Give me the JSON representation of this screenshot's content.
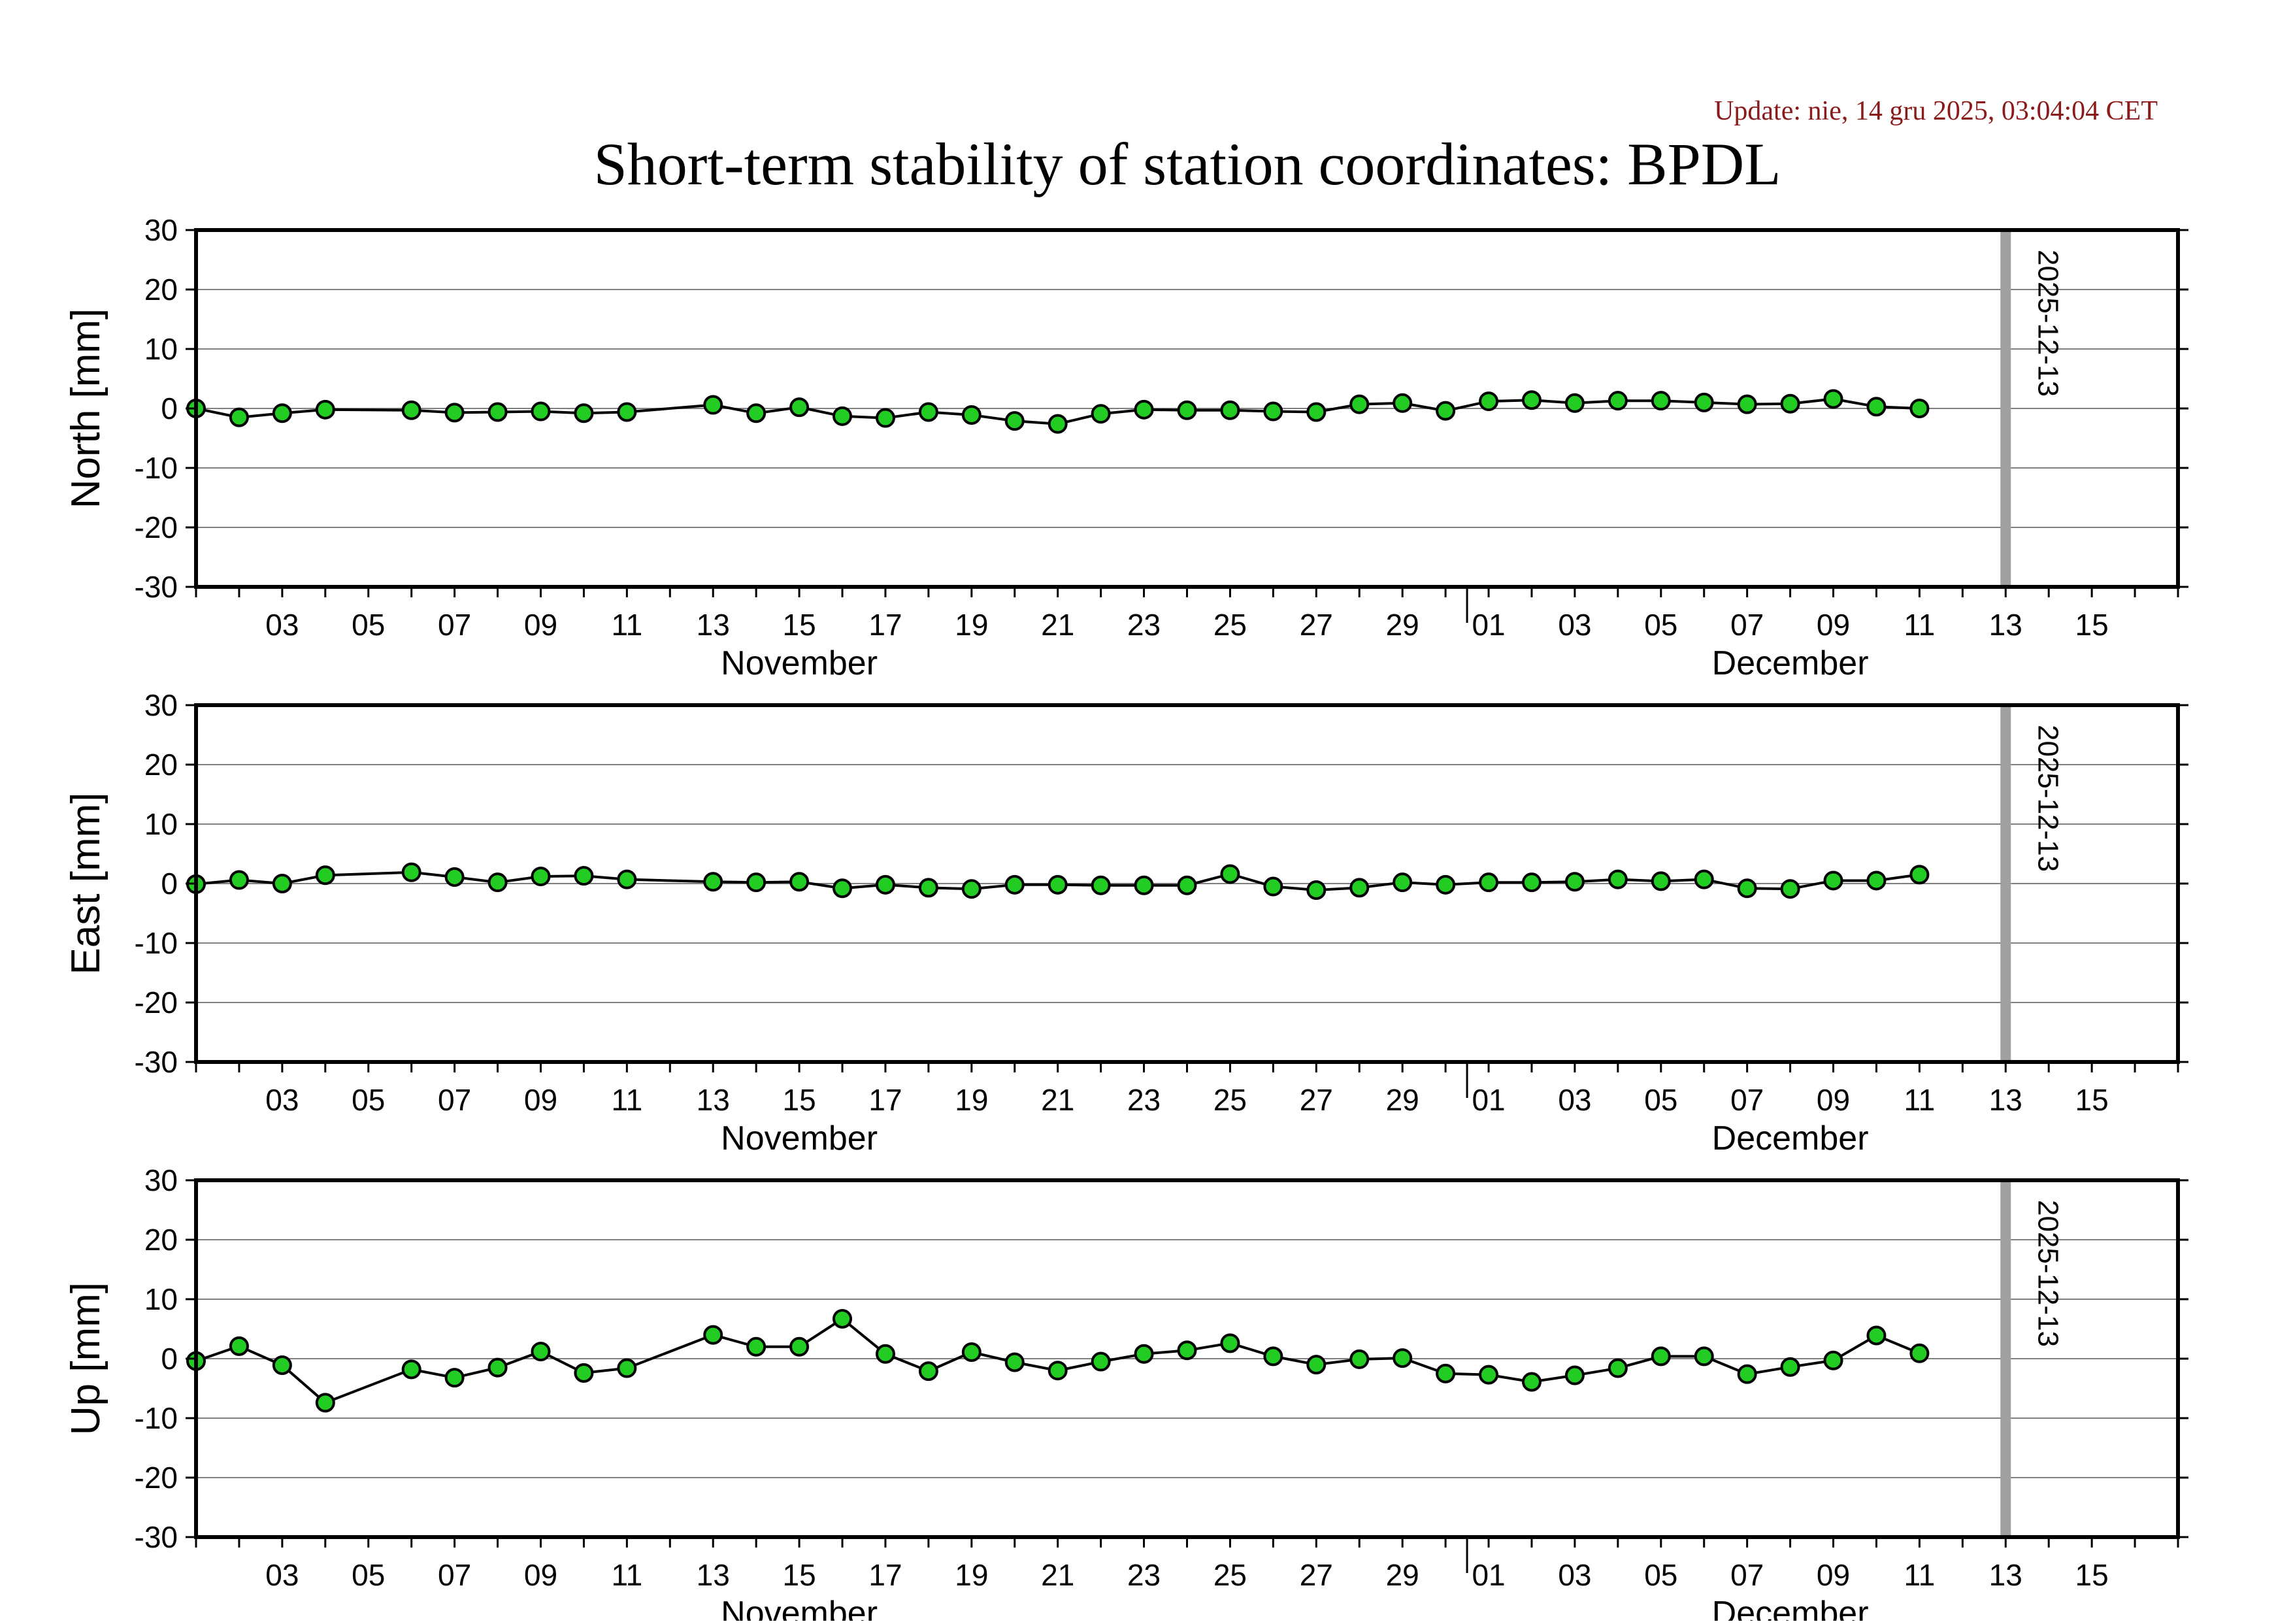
{
  "update_text": "Update: nie, 14 gru 2025, 03:04:04 CET",
  "colors": {
    "update": "#8b1a1a",
    "marker_fill": "#22cc22",
    "marker_stroke": "#000000",
    "line": "#000000",
    "grid": "#808080",
    "marker_band": "#a0a0a0"
  },
  "chart_data": {
    "type": "line",
    "title": "Short-term stability of station coordinates: BPDL",
    "date_marker": "2025-12-13",
    "x_range": [
      "2025-11-01",
      "2025-12-17"
    ],
    "y_range": [
      -30,
      30
    ],
    "y_ticks": [
      30,
      20,
      10,
      0,
      -10,
      -20,
      -30
    ],
    "grid": true,
    "x_ticks": [
      {
        "date": "2025-11-03",
        "label": "03"
      },
      {
        "date": "2025-11-05",
        "label": "05"
      },
      {
        "date": "2025-11-07",
        "label": "07"
      },
      {
        "date": "2025-11-09",
        "label": "09"
      },
      {
        "date": "2025-11-11",
        "label": "11"
      },
      {
        "date": "2025-11-13",
        "label": "13"
      },
      {
        "date": "2025-11-15",
        "label": "15"
      },
      {
        "date": "2025-11-17",
        "label": "17"
      },
      {
        "date": "2025-11-19",
        "label": "19"
      },
      {
        "date": "2025-11-21",
        "label": "21"
      },
      {
        "date": "2025-11-23",
        "label": "23"
      },
      {
        "date": "2025-11-25",
        "label": "25"
      },
      {
        "date": "2025-11-27",
        "label": "27"
      },
      {
        "date": "2025-11-29",
        "label": "29"
      },
      {
        "date": "2025-12-01",
        "label": "01"
      },
      {
        "date": "2025-12-03",
        "label": "03"
      },
      {
        "date": "2025-12-05",
        "label": "05"
      },
      {
        "date": "2025-12-07",
        "label": "07"
      },
      {
        "date": "2025-12-09",
        "label": "09"
      },
      {
        "date": "2025-12-11",
        "label": "11"
      },
      {
        "date": "2025-12-13",
        "label": "13"
      },
      {
        "date": "2025-12-15",
        "label": "15"
      }
    ],
    "months": [
      {
        "label": "November",
        "date": "2025-11-15"
      },
      {
        "label": "December",
        "date": "2025-12-08"
      }
    ],
    "x": [
      "2025-11-01",
      "2025-11-02",
      "2025-11-03",
      "2025-11-04",
      "2025-11-06",
      "2025-11-07",
      "2025-11-08",
      "2025-11-09",
      "2025-11-10",
      "2025-11-11",
      "2025-11-13",
      "2025-11-14",
      "2025-11-15",
      "2025-11-16",
      "2025-11-17",
      "2025-11-18",
      "2025-11-19",
      "2025-11-20",
      "2025-11-21",
      "2025-11-22",
      "2025-11-23",
      "2025-11-24",
      "2025-11-25",
      "2025-11-26",
      "2025-11-27",
      "2025-11-28",
      "2025-11-29",
      "2025-11-30",
      "2025-12-01",
      "2025-12-02",
      "2025-12-03",
      "2025-12-04",
      "2025-12-05",
      "2025-12-06",
      "2025-12-07",
      "2025-12-08",
      "2025-12-09",
      "2025-12-10",
      "2025-12-11"
    ],
    "panels": [
      {
        "ylabel": "North [mm]",
        "values": [
          0,
          -1.5,
          -0.8,
          -0.2,
          -0.3,
          -0.7,
          -0.6,
          -0.5,
          -0.8,
          -0.6,
          0.6,
          -0.8,
          0.2,
          -1.3,
          -1.6,
          -0.6,
          -1.1,
          -2.1,
          -2.6,
          -0.9,
          -0.2,
          -0.3,
          -0.3,
          -0.5,
          -0.6,
          0.7,
          0.9,
          -0.4,
          1.2,
          1.4,
          0.9,
          1.3,
          1.3,
          1.0,
          0.7,
          0.8,
          1.6,
          0.3,
          0.0
        ]
      },
      {
        "ylabel": "East [mm]",
        "values": [
          -0.1,
          0.6,
          0.0,
          1.4,
          1.9,
          1.1,
          0.2,
          1.2,
          1.3,
          0.7,
          0.3,
          0.2,
          0.3,
          -0.8,
          -0.2,
          -0.7,
          -0.9,
          -0.2,
          -0.2,
          -0.3,
          -0.3,
          -0.3,
          1.6,
          -0.5,
          -1.1,
          -0.7,
          0.2,
          -0.2,
          0.2,
          0.2,
          0.3,
          0.7,
          0.4,
          0.7,
          -0.8,
          -0.9,
          0.5,
          0.5,
          1.5
        ]
      },
      {
        "ylabel": "Up [mm]",
        "values": [
          -0.4,
          2.1,
          -1.1,
          -7.4,
          -1.8,
          -3.2,
          -1.5,
          1.2,
          -2.4,
          -1.6,
          4.0,
          2.0,
          2.0,
          6.7,
          0.8,
          -2.1,
          1.1,
          -0.6,
          -2.0,
          -0.5,
          0.8,
          1.4,
          2.6,
          0.4,
          -1.0,
          -0.1,
          0.1,
          -2.5,
          -2.7,
          -3.9,
          -2.8,
          -1.6,
          0.4,
          0.4,
          -2.6,
          -1.4,
          -0.3,
          3.9,
          0.9
        ]
      }
    ]
  }
}
